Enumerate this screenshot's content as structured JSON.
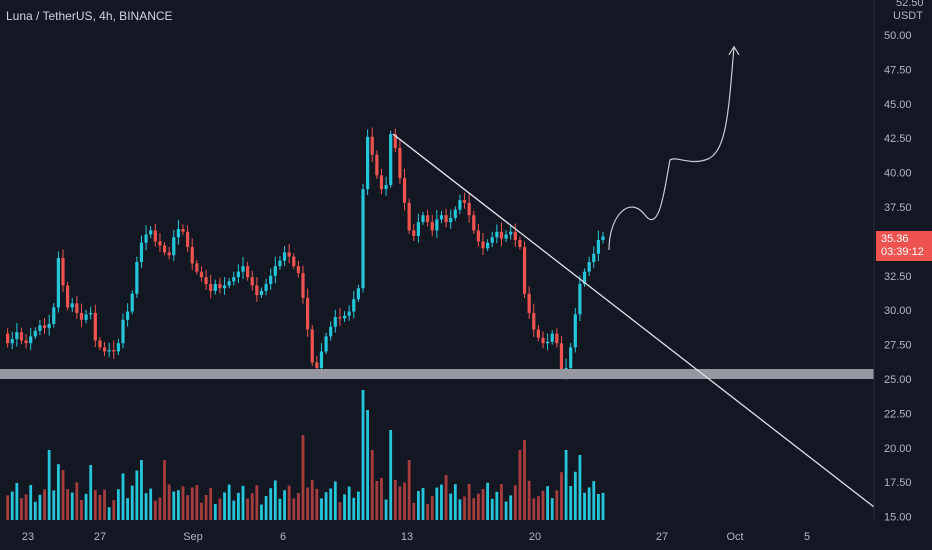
{
  "header": {
    "title": "Luna / TetherUS, 4h, BINANCE"
  },
  "price_scale": {
    "top_value": "52.50",
    "unit": "USDT",
    "current_price": "35.36",
    "countdown": "03:39:12"
  },
  "colors": {
    "background": "#131722",
    "bullish": "#26c6da",
    "bearish": "#ef5350",
    "volume_bullish": "#26c6da",
    "volume_bearish": "#a63c3c",
    "support_zone": "#9598a1",
    "trendline": "#e0e3eb",
    "projection": "#c8cbd2",
    "price_tag": "#ef5350"
  },
  "chart_data": {
    "type": "candlestick",
    "interval": "4h",
    "y_ticks": [
      "15.00",
      "17.50",
      "20.00",
      "22.50",
      "25.00",
      "27.50",
      "30.00",
      "32.50",
      "35.00",
      "37.50",
      "40.00",
      "42.50",
      "45.00",
      "47.50",
      "50.00"
    ],
    "y_range": [
      14.6,
      52.5
    ],
    "x_ticks": [
      "23",
      "27",
      "Sep",
      "6",
      "13",
      "20",
      "27",
      "Oct",
      "5"
    ],
    "close_path": [
      28.3,
      27.6,
      27.9,
      28.4,
      27.8,
      27.6,
      28.1,
      28.5,
      28.9,
      28.7,
      29.0,
      30.2,
      33.8,
      31.8,
      30.2,
      30.5,
      29.8,
      29.3,
      29.7,
      29.8,
      27.8,
      27.3,
      27.0,
      27.1,
      27.0,
      27.6,
      29.3,
      29.9,
      31.2,
      33.5,
      34.9,
      35.5,
      35.8,
      35.0,
      34.7,
      34.2,
      34.0,
      35.3,
      35.9,
      35.7,
      34.6,
      33.4,
      32.8,
      32.4,
      31.9,
      31.4,
      31.9,
      31.6,
      31.8,
      32.1,
      32.4,
      32.8,
      33.2,
      32.4,
      31.8,
      31.1,
      31.4,
      31.9,
      32.5,
      33.2,
      33.6,
      34.2,
      33.9,
      33.2,
      32.7,
      30.9,
      28.6,
      26.2,
      25.8,
      27.0,
      28.1,
      28.8,
      29.5,
      29.4,
      29.6,
      29.9,
      30.8,
      31.6,
      38.8,
      42.6,
      41.3,
      39.8,
      38.8,
      39.1,
      42.8,
      41.8,
      39.6,
      37.8,
      35.8,
      35.4,
      36.4,
      36.9,
      36.4,
      35.8,
      36.6,
      36.9,
      36.4,
      36.7,
      37.3,
      38.0,
      37.8,
      36.9,
      35.8,
      35.0,
      34.5,
      34.9,
      35.3,
      35.7,
      35.2,
      35.5,
      35.7,
      35.1,
      34.6,
      31.2,
      29.8,
      28.6,
      28.0,
      27.6,
      27.7,
      28.3,
      27.6,
      25.5,
      25.8,
      27.3,
      29.7,
      31.9,
      32.8,
      33.5,
      34.1,
      35.1,
      35.36
    ],
    "support_zone": [
      25.0,
      25.7
    ],
    "trendline": {
      "from": [
        13,
        42.8
      ],
      "to": [
        5,
        15.7
      ]
    },
    "projection_peaks": [
      37.8,
      40.5,
      49.0
    ]
  }
}
